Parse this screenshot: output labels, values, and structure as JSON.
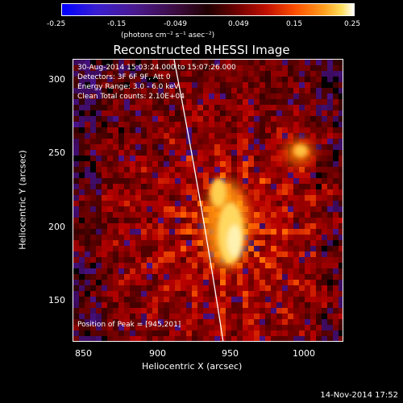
{
  "colorbar": {
    "ticks": [
      "-0.25",
      "-0.15",
      "-0.049",
      "0.049",
      "0.15",
      "0.25"
    ],
    "unit_label": "(photons cm⁻² s⁻¹ asec⁻²)"
  },
  "plot": {
    "title": "Reconstructed RHESSI Image",
    "xlabel": "Heliocentric X (arcsec)",
    "ylabel": "Heliocentric Y (arcsec)",
    "xticks": [
      "850",
      "900",
      "950",
      "1000"
    ],
    "yticks": [
      "300",
      "250",
      "200",
      "150"
    ],
    "annotations": {
      "time_range": "30-Aug-2014 15:03:24.000 to 15:07:26.000",
      "detectors": "Detectors: 3F 6F 9F, Att 0",
      "energy": "Energy Range: 3.0 - 6.0 keV",
      "clean": "Clean    Total counts: 2.10E+04",
      "peak": "Position of Peak = [945,201]"
    }
  },
  "footer": {
    "date": "14-Nov-2014 17:52"
  }
}
